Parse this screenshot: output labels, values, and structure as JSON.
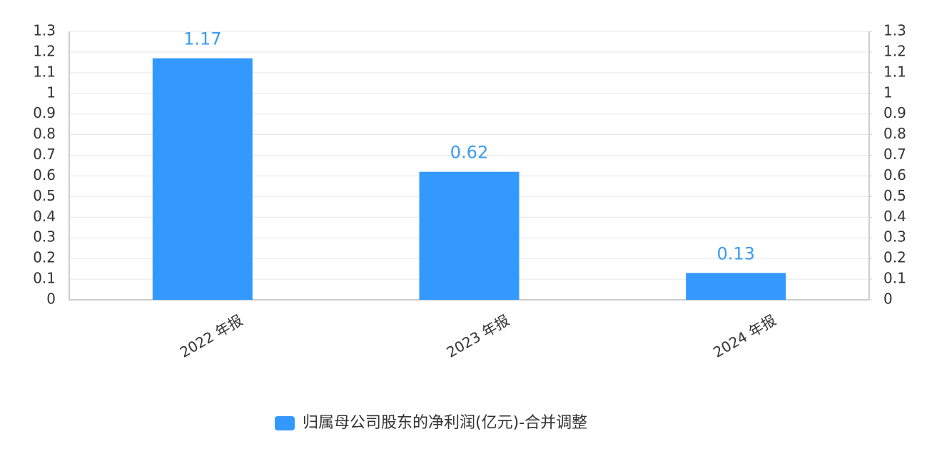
{
  "chart_data": {
    "type": "bar",
    "categories": [
      "2022 年报",
      "2023 年报",
      "2024 年报"
    ],
    "series": [
      {
        "name": "归属母公司股东的净利润(亿元)-合并调整",
        "color": "#3399ff",
        "values": [
          1.17,
          0.62,
          0.13
        ]
      }
    ],
    "ylim": [
      0,
      1.3
    ],
    "yticks": [
      0,
      0.1,
      0.2,
      0.3,
      0.4,
      0.5,
      0.6,
      0.7,
      0.8,
      0.9,
      1,
      1.1,
      1.2,
      1.3
    ],
    "y2lim": [
      0,
      1.3
    ],
    "y2ticks": [
      0,
      0.1,
      0.2,
      0.3,
      0.4,
      0.5,
      0.6,
      0.7,
      0.8,
      0.9,
      1,
      1.1,
      1.2,
      1.3
    ],
    "grid": true,
    "legend": "bottom"
  }
}
